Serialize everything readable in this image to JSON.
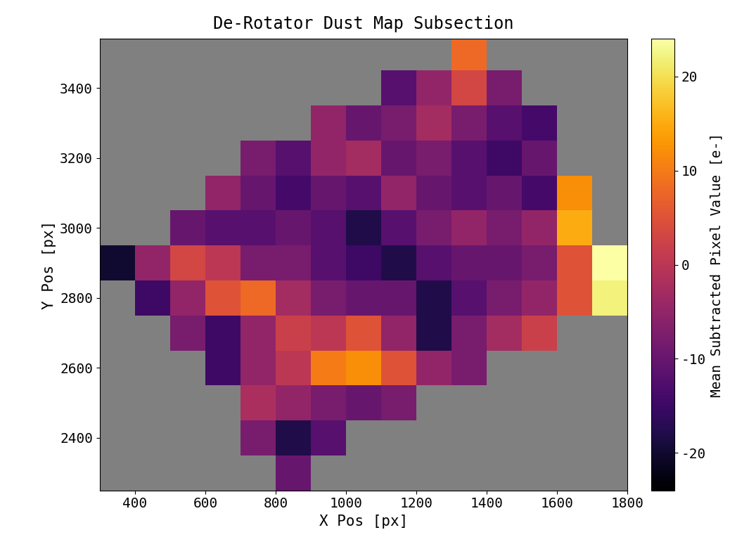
{
  "chart_data": {
    "type": "heatmap",
    "title": "De-Rotator Dust Map Subsection",
    "x_label": "X Pos [px]",
    "y_label": "Y Pos [px]",
    "xlim": [
      300,
      1800
    ],
    "ylim": [
      2250,
      3540
    ],
    "xticks": [
      400,
      600,
      800,
      1000,
      1200,
      1400,
      1600,
      1800
    ],
    "yticks": [
      2400,
      2600,
      2800,
      3000,
      3200,
      3400
    ],
    "x_edges": [
      300,
      400,
      500,
      600,
      700,
      800,
      900,
      1000,
      1100,
      1200,
      1300,
      1400,
      1500,
      1600,
      1700,
      1800
    ],
    "y_edges": [
      2250,
      2350,
      2450,
      2550,
      2650,
      2750,
      2850,
      2950,
      3050,
      3150,
      3250,
      3350,
      3450,
      3550
    ],
    "cells": [
      [
        null,
        null,
        null,
        null,
        null,
        -10,
        null,
        null,
        null,
        null,
        null,
        null,
        null,
        null,
        null
      ],
      [
        null,
        null,
        null,
        null,
        -8,
        -18,
        -12,
        null,
        null,
        null,
        null,
        null,
        null,
        null,
        null
      ],
      [
        null,
        null,
        null,
        null,
        -2,
        -5,
        -8,
        -10,
        -8,
        null,
        null,
        null,
        null,
        null,
        null
      ],
      [
        null,
        null,
        null,
        -15,
        -5,
        0,
        10,
        12,
        5,
        -5,
        -8,
        null,
        null,
        null,
        null
      ],
      [
        null,
        null,
        -8,
        -15,
        -5,
        2,
        0,
        5,
        -5,
        -18,
        -8,
        -3,
        2,
        null,
        null
      ],
      [
        null,
        -15,
        -5,
        5,
        8,
        -3,
        -8,
        -10,
        -10,
        -18,
        -12,
        -8,
        -5,
        5,
        22
      ],
      [
        -20,
        -5,
        3,
        0,
        -8,
        -8,
        -12,
        -15,
        -18,
        -12,
        -10,
        -10,
        -8,
        5,
        24
      ],
      [
        null,
        null,
        -10,
        -12,
        -12,
        -10,
        -12,
        -18,
        -12,
        -8,
        -5,
        -8,
        -5,
        15,
        null
      ],
      [
        null,
        null,
        null,
        -5,
        -10,
        -14,
        -10,
        -12,
        -5,
        -10,
        -12,
        -10,
        -14,
        12,
        null
      ],
      [
        null,
        null,
        null,
        null,
        -8,
        -12,
        -5,
        -3,
        -10,
        -8,
        -12,
        -15,
        -10,
        null,
        null
      ],
      [
        null,
        null,
        null,
        null,
        null,
        null,
        -5,
        -10,
        -8,
        -3,
        -8,
        -12,
        -14,
        null,
        null
      ],
      [
        null,
        null,
        null,
        null,
        null,
        null,
        null,
        null,
        -12,
        -5,
        3,
        -8,
        null,
        null,
        null
      ],
      [
        null,
        null,
        null,
        null,
        null,
        null,
        null,
        null,
        null,
        null,
        8,
        null,
        null,
        null,
        null
      ]
    ],
    "colorbar": {
      "label": "Mean Subtracted Pixel Value [e-]",
      "range": [
        -24,
        24
      ],
      "ticks": [
        -20,
        -10,
        0,
        10,
        20
      ]
    }
  }
}
